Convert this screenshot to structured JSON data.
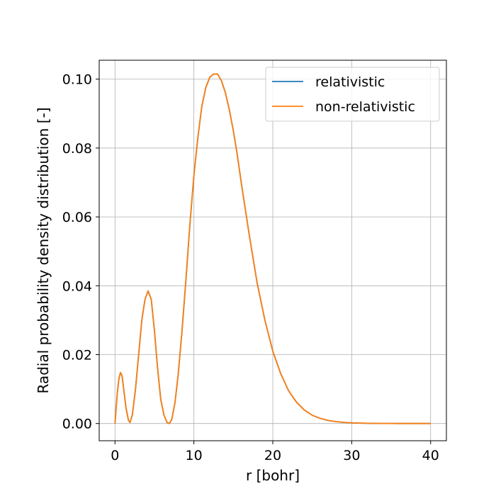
{
  "chart_data": {
    "type": "line",
    "title": "",
    "xlabel": "r [bohr]",
    "ylabel": "Radial probability density distribution [-]",
    "xlim": [
      -2,
      42
    ],
    "ylim": [
      -0.005,
      0.1055
    ],
    "xticks": [
      0,
      10,
      20,
      30,
      40
    ],
    "yticks": [
      0.0,
      0.02,
      0.04,
      0.06,
      0.08,
      0.1
    ],
    "xtick_labels": [
      "0",
      "10",
      "20",
      "30",
      "40"
    ],
    "ytick_labels": [
      "0.00",
      "0.02",
      "0.04",
      "0.06",
      "0.08",
      "0.10"
    ],
    "grid": true,
    "legend_position": "top-right",
    "x": [
      0,
      0.3,
      0.5,
      0.7,
      0.9,
      1.1,
      1.4,
      1.7,
      1.9,
      2.2,
      2.6,
      3.0,
      3.4,
      3.8,
      4.2,
      4.6,
      5.0,
      5.4,
      5.8,
      6.2,
      6.6,
      6.9,
      7.2,
      7.6,
      8.0,
      8.5,
      9.0,
      9.5,
      10.0,
      10.5,
      11.0,
      11.5,
      12.0,
      12.5,
      13.0,
      13.5,
      14.0,
      14.5,
      15.0,
      15.5,
      16.0,
      17.0,
      18.0,
      19.0,
      20.0,
      21.0,
      22.0,
      23.0,
      24.0,
      25.0,
      26.0,
      27.0,
      28.0,
      29.0,
      30.0,
      31.0,
      32.0,
      33.0,
      34.0,
      35.0,
      36.0,
      37.0,
      38.0,
      39.0,
      40.0
    ],
    "series": [
      {
        "name": "relativistic",
        "color": "#1f77b4",
        "values": [
          0.0,
          0.009,
          0.013,
          0.0148,
          0.0138,
          0.01,
          0.0045,
          0.001,
          0.0003,
          0.0025,
          0.01,
          0.02,
          0.03,
          0.036,
          0.0385,
          0.036,
          0.027,
          0.016,
          0.007,
          0.0025,
          0.0003,
          0.0,
          0.0012,
          0.006,
          0.014,
          0.027,
          0.042,
          0.058,
          0.072,
          0.083,
          0.092,
          0.0975,
          0.1005,
          0.1015,
          0.1015,
          0.0995,
          0.096,
          0.091,
          0.085,
          0.078,
          0.07,
          0.055,
          0.041,
          0.03,
          0.021,
          0.0145,
          0.0095,
          0.0062,
          0.0039,
          0.0024,
          0.0015,
          0.0009,
          0.00055,
          0.00033,
          0.0002,
          0.00012,
          7e-05,
          4e-05,
          2e-05,
          1e-05,
          6e-06,
          3e-06,
          2e-06,
          1e-06,
          0.0
        ]
      },
      {
        "name": "non-relativistic",
        "color": "#ff7f0e",
        "values": [
          0.0,
          0.009,
          0.013,
          0.0148,
          0.0138,
          0.01,
          0.0045,
          0.001,
          0.0003,
          0.0025,
          0.01,
          0.02,
          0.03,
          0.036,
          0.0385,
          0.036,
          0.027,
          0.016,
          0.007,
          0.0025,
          0.0003,
          0.0,
          0.0012,
          0.006,
          0.014,
          0.027,
          0.042,
          0.058,
          0.072,
          0.083,
          0.092,
          0.0975,
          0.1005,
          0.1015,
          0.1015,
          0.0995,
          0.096,
          0.091,
          0.085,
          0.078,
          0.07,
          0.055,
          0.041,
          0.03,
          0.021,
          0.0145,
          0.0095,
          0.0062,
          0.0039,
          0.0024,
          0.0015,
          0.0009,
          0.00055,
          0.00033,
          0.0002,
          0.00012,
          7e-05,
          4e-05,
          2e-05,
          1e-05,
          6e-06,
          3e-06,
          2e-06,
          1e-06,
          0.0
        ]
      }
    ]
  }
}
